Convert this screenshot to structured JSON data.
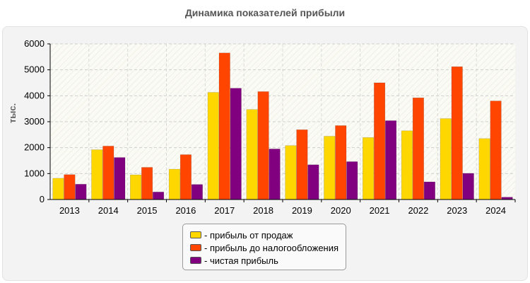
{
  "chart_data": {
    "type": "bar",
    "title": "Динамика показателей прибыли",
    "ylabel": "тыс.",
    "xlabel": "",
    "ylim": [
      0,
      6000
    ],
    "yticks": [
      0,
      1000,
      2000,
      3000,
      4000,
      5000,
      6000
    ],
    "grid": true,
    "legend_position": "bottom-center",
    "categories": [
      "2013",
      "2014",
      "2015",
      "2016",
      "2017",
      "2018",
      "2019",
      "2020",
      "2021",
      "2022",
      "2023",
      "2024"
    ],
    "series": [
      {
        "name": "- прибыль от продаж",
        "color": "#FFD700",
        "values": [
          820,
          1920,
          950,
          1170,
          4130,
          3470,
          2080,
          2440,
          2390,
          2650,
          3120,
          2350
        ]
      },
      {
        "name": "- прибыль до налогообложения",
        "color": "#FF4500",
        "values": [
          960,
          2060,
          1240,
          1730,
          5650,
          4160,
          2690,
          2850,
          4500,
          3920,
          5120,
          3800
        ]
      },
      {
        "name": "- чистая прибыль",
        "color": "#800080",
        "values": [
          590,
          1620,
          290,
          580,
          4290,
          1950,
          1340,
          1460,
          3040,
          680,
          1010,
          90
        ]
      }
    ]
  }
}
